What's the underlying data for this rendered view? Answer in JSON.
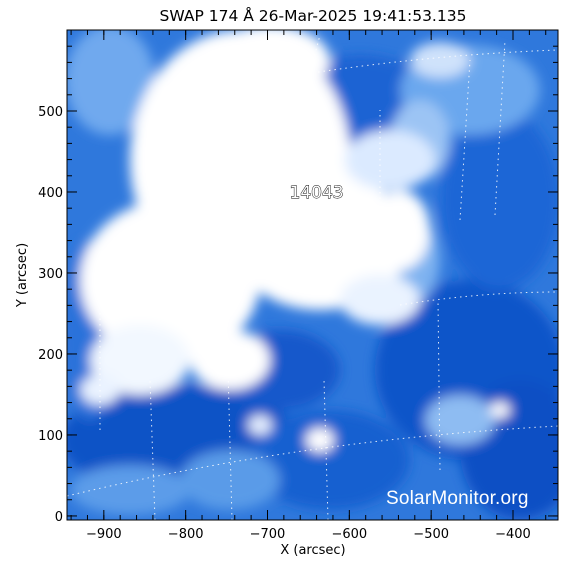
{
  "title": "SWAP 174 Å 26-Mar-2025 19:41:53.135",
  "x_axis": {
    "label": "X (arcsec)",
    "range": [
      -945,
      -345
    ],
    "ticks": [
      -900,
      -800,
      -700,
      -600,
      -500,
      -400
    ]
  },
  "y_axis": {
    "label": "Y (arcsec)",
    "range": [
      -5,
      600
    ],
    "ticks": [
      0,
      100,
      200,
      300,
      400,
      500
    ]
  },
  "region": {
    "label": "14043",
    "x": -640,
    "y": 400
  },
  "watermark": "SolarMonitor.org",
  "colors": {
    "background": "#ffffff",
    "bright": "#ffffff",
    "mid": "#6aa8ee",
    "dark": "#0a50c8",
    "deep": "#0040b0",
    "grid": "#ffffff"
  }
}
